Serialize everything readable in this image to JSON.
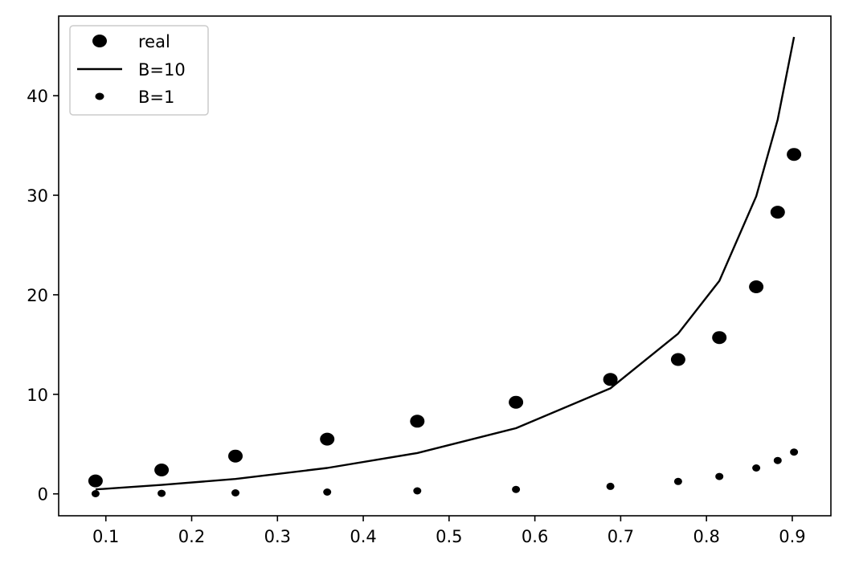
{
  "chart_data": {
    "type": "scatter",
    "title": "",
    "xlabel": "",
    "ylabel": "",
    "xlim": [
      0.045,
      0.945
    ],
    "ylim": [
      -2.2,
      48.0
    ],
    "x_ticks": [
      0.1,
      0.2,
      0.3,
      0.4,
      0.5,
      0.6,
      0.7,
      0.8,
      0.9
    ],
    "x_tick_labels": [
      "0.1",
      "0.2",
      "0.3",
      "0.4",
      "0.5",
      "0.6",
      "0.7",
      "0.8",
      "0.9"
    ],
    "y_ticks": [
      0,
      10,
      20,
      30,
      40
    ],
    "y_tick_labels": [
      "0",
      "10",
      "20",
      "30",
      "40"
    ],
    "grid": false,
    "legend_position": "top-left",
    "x": [
      0.088,
      0.165,
      0.251,
      0.358,
      0.463,
      0.578,
      0.688,
      0.767,
      0.815,
      0.858,
      0.883,
      0.902
    ],
    "series": [
      {
        "name": "real",
        "style": "large-dots",
        "color": "#000000",
        "values": [
          1.3,
          2.4,
          3.8,
          5.5,
          7.3,
          9.2,
          11.5,
          13.5,
          15.7,
          20.8,
          28.3,
          34.1
        ]
      },
      {
        "name": "B=10",
        "style": "line",
        "color": "#000000",
        "values": [
          0.45,
          0.9,
          1.5,
          2.6,
          4.1,
          6.6,
          10.6,
          16.1,
          21.4,
          29.9,
          37.6,
          45.9
        ]
      },
      {
        "name": "B=1",
        "style": "small-dots",
        "color": "#000000",
        "values": [
          0.02,
          0.05,
          0.1,
          0.18,
          0.3,
          0.45,
          0.75,
          1.25,
          1.75,
          2.6,
          3.35,
          4.2
        ]
      }
    ]
  }
}
